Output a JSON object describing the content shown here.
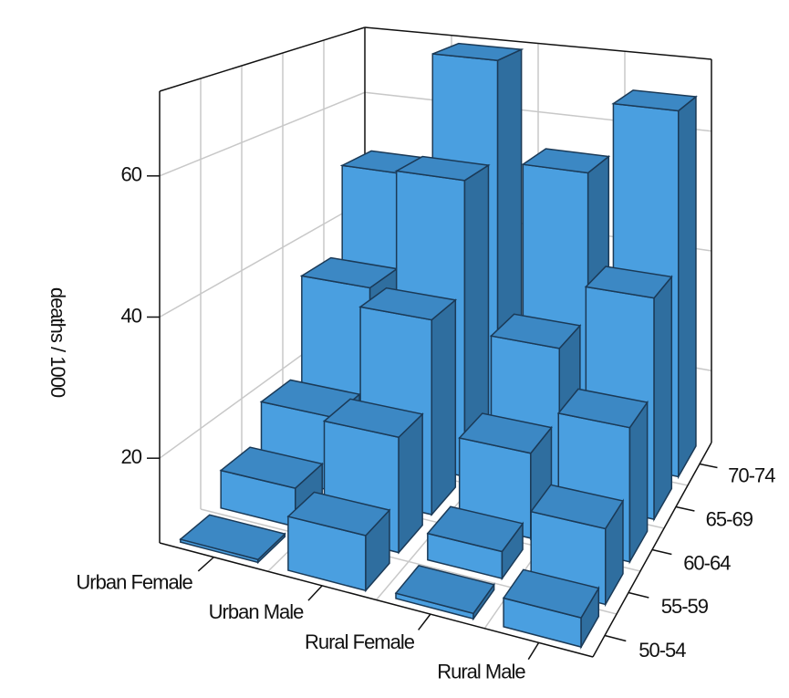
{
  "chart_data": {
    "type": "bar3d",
    "groups": [
      "Urban Female",
      "Urban Male",
      "Rural Female",
      "Rural Male"
    ],
    "categories": [
      "50-54",
      "55-59",
      "60-64",
      "65-69",
      "70-74"
    ],
    "values": [
      [
        8.4,
        13.6,
        19.3,
        35.1,
        50.0
      ],
      [
        15.4,
        24.3,
        37.0,
        54.6,
        71.1
      ],
      [
        8.7,
        11.7,
        20.3,
        30.9,
        54.3
      ],
      [
        11.7,
        18.1,
        26.9,
        41.0,
        66.0
      ]
    ],
    "zlabel": "deaths / 1000",
    "zlim": [
      8,
      72
    ],
    "zticks": [
      20,
      40,
      60
    ],
    "color": "#4a9fe0",
    "grid": true
  }
}
